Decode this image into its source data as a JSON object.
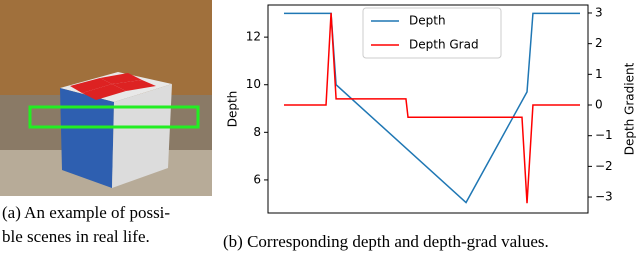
{
  "chart_data": {
    "type": "line",
    "ylabel": "Depth",
    "y2label": "Depth Gradient",
    "xlim": [
      -5.4,
      102.7
    ],
    "ylim": [
      4.61,
      13.35
    ],
    "yticks": [
      6,
      8,
      10,
      12
    ],
    "y2lim": [
      -3.52,
      3.26
    ],
    "y2ticks": [
      {
        "value": -3,
        "label": "−3"
      },
      {
        "value": -2,
        "label": "−2"
      },
      {
        "value": -1,
        "label": "−1"
      },
      0,
      1,
      2,
      3
    ],
    "legend": "upper center",
    "series": [
      {
        "name": "Depth",
        "color": "#1f77b4",
        "x": [
          0,
          15.9,
          17.6,
          61.5,
          82.1,
          84.1,
          100
        ],
        "values": [
          13,
          13,
          10,
          5.05,
          9.7,
          13,
          13
        ]
      },
      {
        "name": "Depth Grad",
        "color": "#ff0000",
        "axis": "y2",
        "x": [
          0,
          14.2,
          15.9,
          17.6,
          41.2,
          41.9,
          80.4,
          82.1,
          84.1,
          100
        ],
        "values": [
          0,
          0,
          3,
          0.2,
          0.2,
          -0.4,
          -0.4,
          -3.2,
          0,
          0
        ]
      }
    ]
  },
  "captions": {
    "a": [
      "(a) An example of possi-",
      "ble scenes in real life."
    ],
    "b": "(b) Corresponding depth and depth-grad values."
  }
}
